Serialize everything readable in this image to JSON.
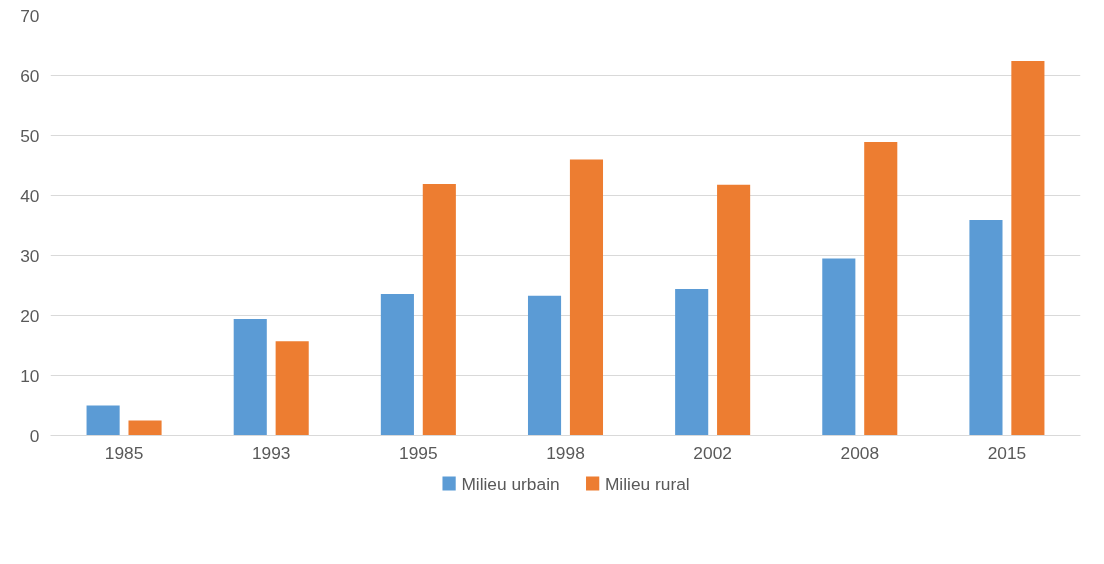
{
  "chart_data": {
    "type": "bar",
    "categories": [
      "1985",
      "1993",
      "1995",
      "1998",
      "2002",
      "2008",
      "2015"
    ],
    "series": [
      {
        "name": "Milieu urbain",
        "color": "#5b9bd5",
        "values": [
          5.0,
          19.4,
          23.6,
          23.3,
          24.4,
          29.5,
          35.9
        ]
      },
      {
        "name": "Milieu rural",
        "color": "#ed7d31",
        "values": [
          2.5,
          15.7,
          41.9,
          46.0,
          41.8,
          48.9,
          62.4
        ]
      }
    ],
    "ylim": [
      0,
      70
    ],
    "yticks": [
      0,
      10,
      20,
      30,
      40,
      50,
      60,
      70
    ],
    "grid": "y",
    "legend": "bottom"
  }
}
